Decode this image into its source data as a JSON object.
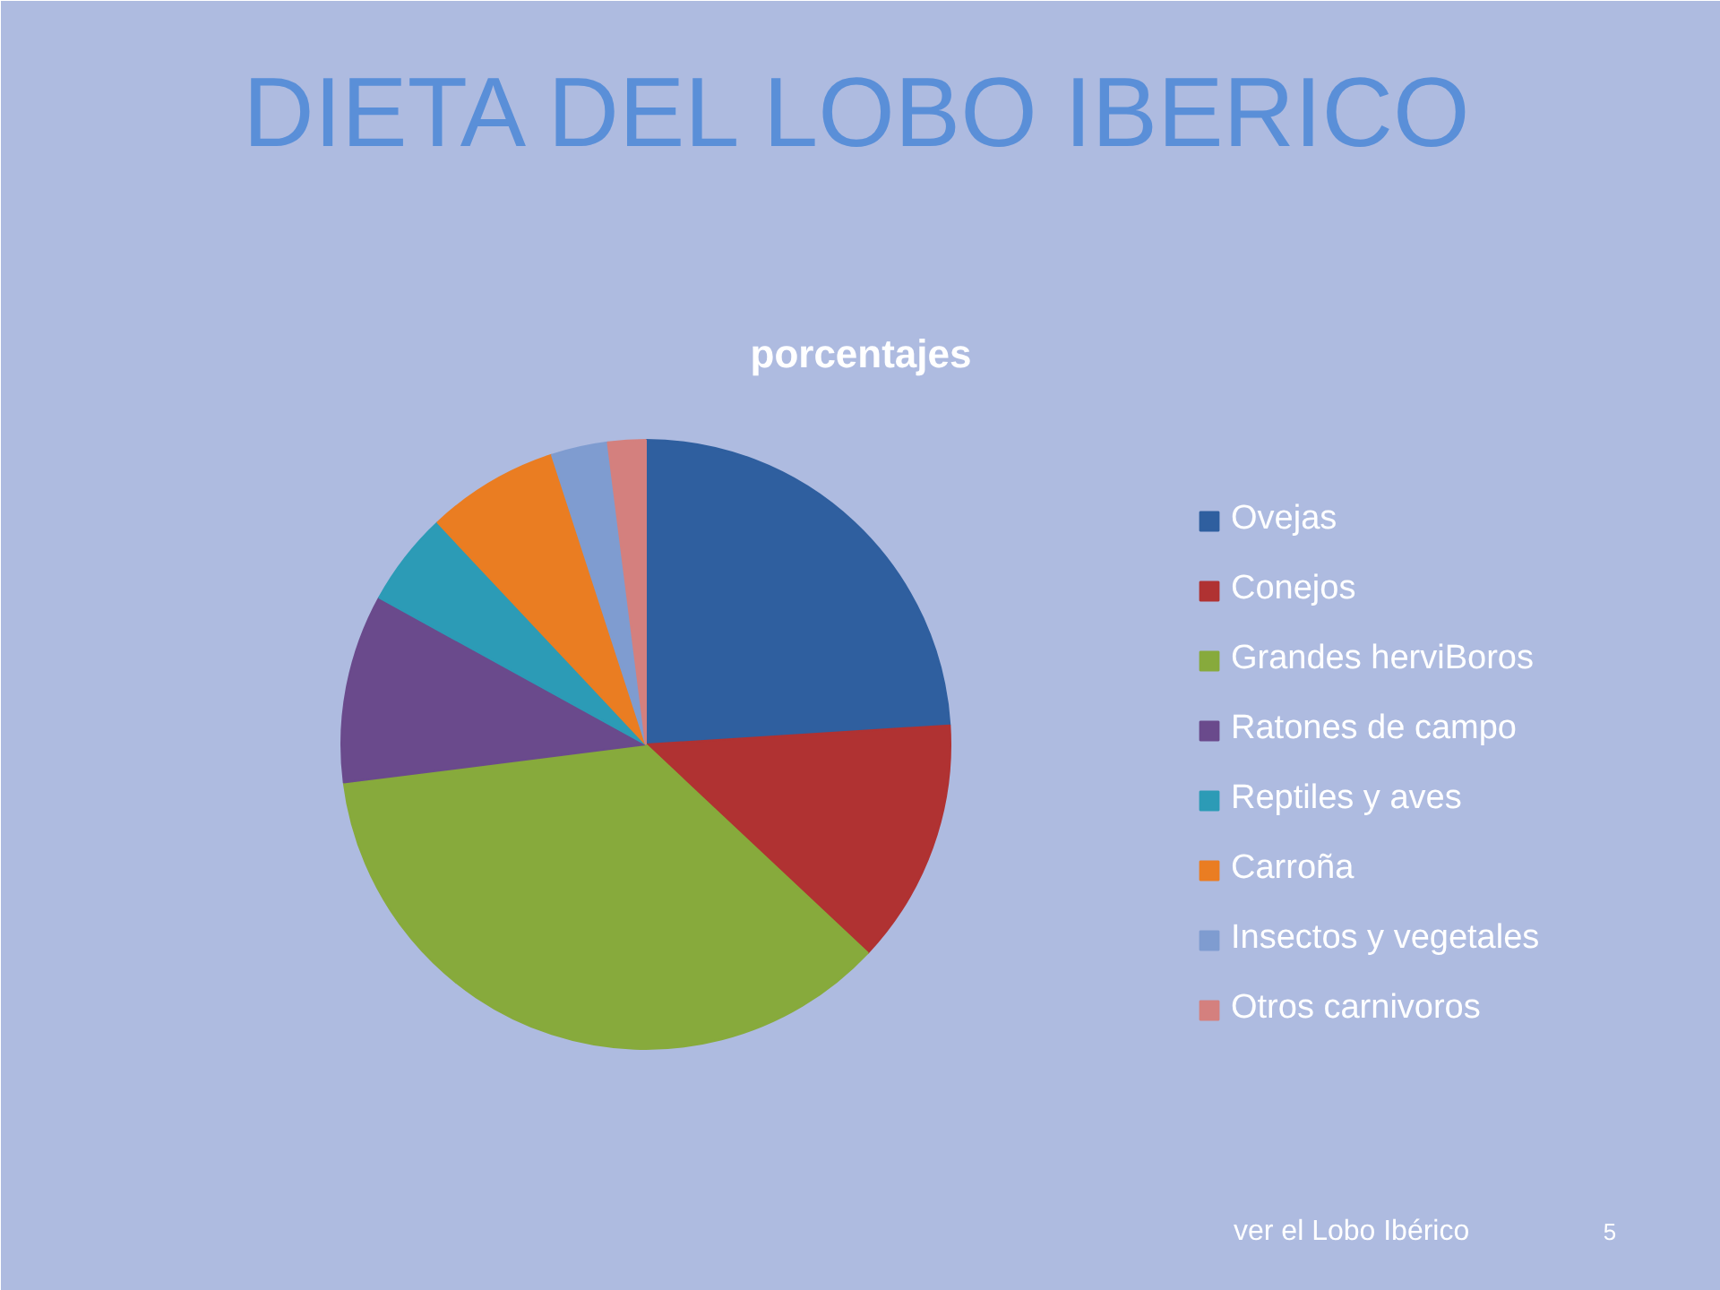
{
  "chart_data": {
    "type": "pie",
    "title": "DIETA DEL LOBO IBERICO",
    "subtitle": "porcentajes",
    "categories": [
      "Ovejas",
      "Conejos",
      "Grandes herviBoros",
      "Ratones de campo",
      "Reptiles y aves",
      "Carroña",
      "Insectos y vegetales",
      "Otros carnivoros"
    ],
    "values": [
      24,
      13,
      36,
      10,
      5,
      7,
      3,
      2
    ],
    "colors": [
      "#2f5f9f",
      "#b03232",
      "#87aa3c",
      "#6a4a8c",
      "#2c9bb6",
      "#ea7d22",
      "#7f9cd0",
      "#d4807e"
    ],
    "legend": "right",
    "annotations": [
      "ver el Lobo Ibérico",
      "5"
    ]
  }
}
